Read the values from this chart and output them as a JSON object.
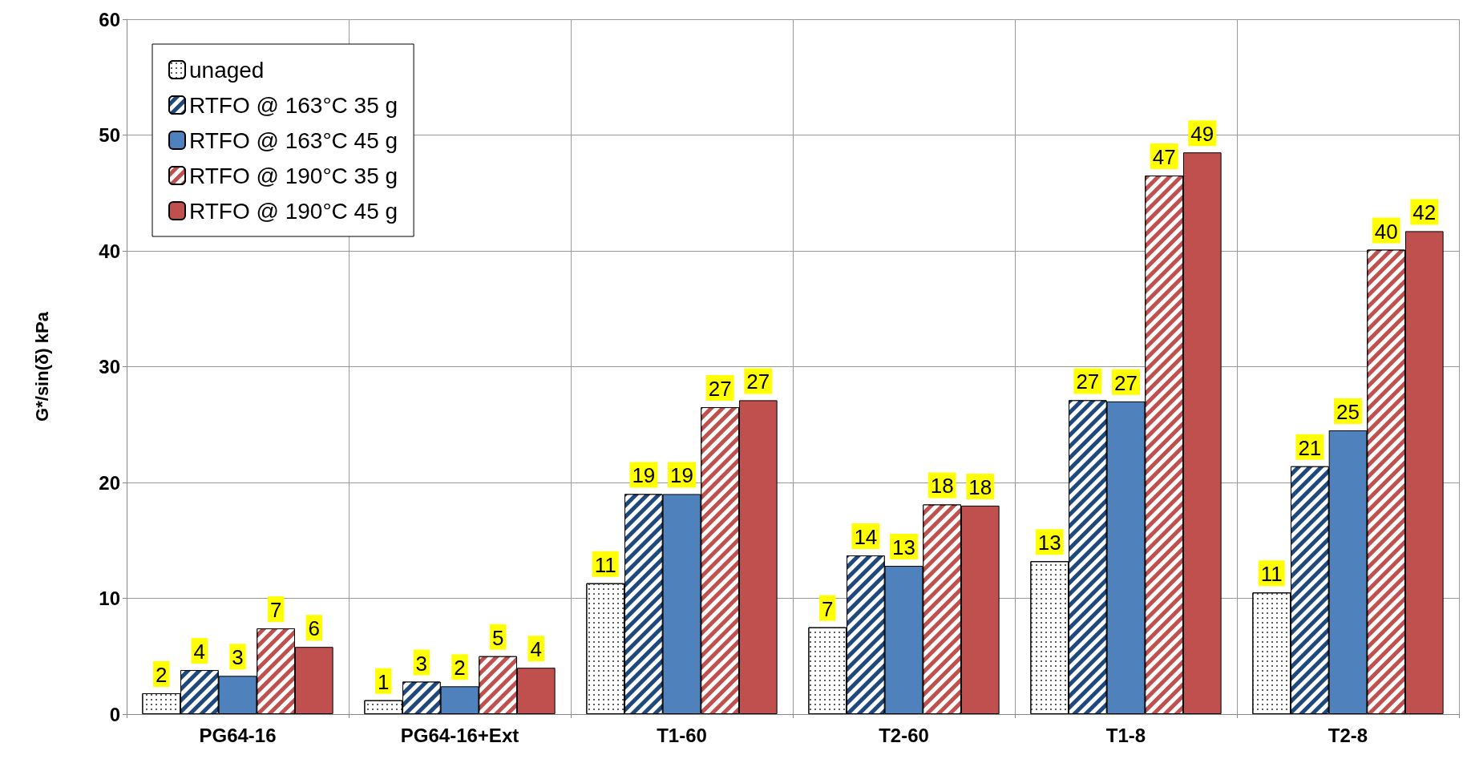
{
  "chart_data": {
    "type": "bar",
    "ylabel": "G*/sin(δ) kPa",
    "categories": [
      "PG64-16",
      "PG64-16+Ext",
      "T1-60",
      "T2-60",
      "T1-8",
      "T2-8"
    ],
    "series": [
      {
        "name": "unaged",
        "color": "#ffffff",
        "values": [
          1.8,
          1.2,
          11.3,
          7.5,
          13.2,
          10.5
        ],
        "value_labels": [
          "2",
          "1",
          "11",
          "7",
          "13",
          "11"
        ]
      },
      {
        "name": "RTFO @ 163°C 35 g",
        "color": "#1f497d",
        "values": [
          3.8,
          2.8,
          19.0,
          13.7,
          27.1,
          21.4
        ],
        "value_labels": [
          "4",
          "3",
          "19",
          "14",
          "27",
          "21"
        ]
      },
      {
        "name": "RTFO @ 163°C 45 g",
        "color": "#4f81bd",
        "values": [
          3.3,
          2.4,
          19.0,
          12.8,
          27.0,
          24.5
        ],
        "value_labels": [
          "3",
          "2",
          "19",
          "13",
          "27",
          "25"
        ]
      },
      {
        "name": "RTFO @ 190°C 35 g",
        "color": "#c0504d",
        "values": [
          7.4,
          5.0,
          26.5,
          18.1,
          46.5,
          40.1
        ],
        "value_labels": [
          "7",
          "5",
          "27",
          "18",
          "47",
          "40"
        ]
      },
      {
        "name": "RTFO @ 190°C 45 g",
        "color": "#c0504d",
        "values": [
          5.8,
          4.0,
          27.1,
          18.0,
          48.5,
          41.7
        ],
        "value_labels": [
          "6",
          "4",
          "27",
          "18",
          "49",
          "42"
        ]
      }
    ],
    "ylim": [
      0,
      60
    ],
    "yticks": [
      0,
      10,
      20,
      30,
      40,
      50,
      60
    ],
    "grid": true,
    "legend": "top left"
  }
}
